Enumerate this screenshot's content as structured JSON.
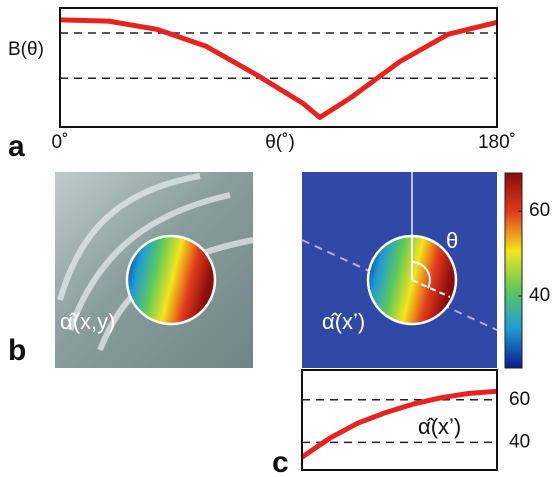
{
  "chart_data": [
    {
      "type": "line",
      "panel_label": "a",
      "ylabel": "B(θ)",
      "xlabel": "θ(˚)",
      "x": [
        0,
        20,
        40,
        60,
        80,
        100,
        107,
        120,
        140,
        160,
        180
      ],
      "values": [
        0.9,
        0.89,
        0.82,
        0.68,
        0.45,
        0.2,
        0.08,
        0.25,
        0.55,
        0.78,
        0.88
      ],
      "color": "#e8231f",
      "xlim": [
        0,
        180
      ],
      "ylim": [
        0,
        1
      ],
      "xticks": [
        {
          "value": 0,
          "label": "0˚"
        },
        {
          "value": 180,
          "label": "180˚"
        }
      ],
      "hlines": [
        0.79,
        0.41
      ]
    },
    {
      "type": "line",
      "panel_label": "c",
      "annotation": "α̂(x’)",
      "values": [
        33,
        42,
        49,
        54,
        58,
        61,
        63,
        64
      ],
      "color": "#e8231f",
      "ylim": [
        27,
        74
      ],
      "yticks": [
        60,
        40
      ],
      "grid": true
    },
    {
      "type": "colorbar",
      "panel_label": "b",
      "left_annotation": "α̂(x,y)",
      "right_annotation": "α̂(x’)",
      "angle_label": "θ",
      "ylim": [
        23,
        69
      ],
      "yticks": [
        40,
        60
      ],
      "colors": [
        "#0b1a8c",
        "#1f9bd6",
        "#5ec95a",
        "#f2e51d",
        "#e23b1c",
        "#8c0d0d"
      ]
    }
  ]
}
